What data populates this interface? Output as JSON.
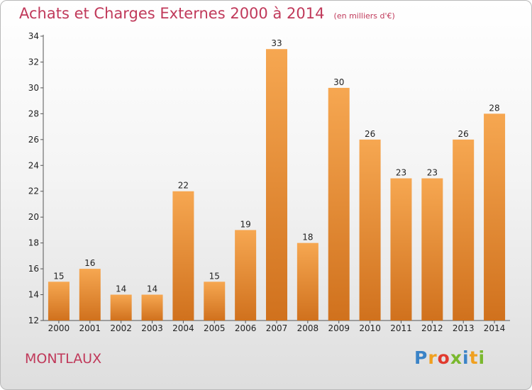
{
  "header": {
    "title": "Achats et Charges Externes 2000 à 2014",
    "unit": "(en milliers d'€)"
  },
  "footer": {
    "commune": "MONTLAUX",
    "logo": [
      "P",
      "r",
      "o",
      "x",
      "i",
      "t",
      "i"
    ]
  },
  "colors": {
    "title": "#c0395a",
    "bar_light": "#f6a751",
    "bar_dark": "#d0711d"
  },
  "chart_data": {
    "type": "bar",
    "title": "Achats et Charges Externes 2000 à 2014",
    "subtitle": "(en milliers d'€)",
    "categories": [
      "2000",
      "2001",
      "2002",
      "2003",
      "2004",
      "2005",
      "2006",
      "2007",
      "2008",
      "2009",
      "2010",
      "2011",
      "2012",
      "2013",
      "2014"
    ],
    "values": [
      15,
      16,
      14,
      14,
      22,
      15,
      19,
      33,
      18,
      30,
      26,
      23,
      23,
      26,
      28
    ],
    "ylim": [
      12,
      34
    ],
    "yticks": [
      12,
      14,
      16,
      18,
      20,
      22,
      24,
      26,
      28,
      30,
      32,
      34
    ],
    "grid": false,
    "xlabel": "",
    "ylabel": ""
  }
}
